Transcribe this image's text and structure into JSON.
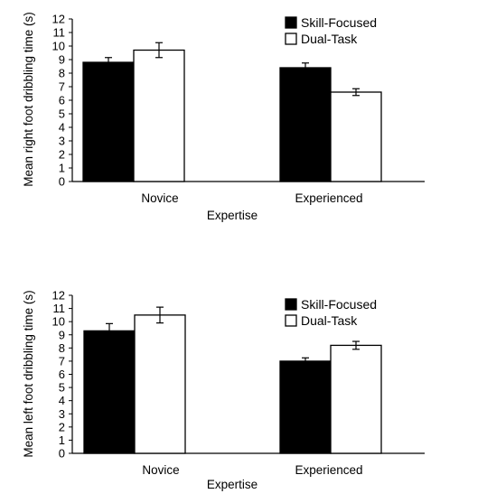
{
  "chart_data": [
    {
      "type": "bar",
      "categories": [
        "Novice",
        "Experienced"
      ],
      "series": [
        {
          "name": "Skill-Focused",
          "color": "#000000",
          "values": [
            8.8,
            8.4
          ],
          "errors": [
            0.35,
            0.35
          ]
        },
        {
          "name": "Dual-Task",
          "color": "#ffffff",
          "values": [
            9.7,
            6.6
          ],
          "errors": [
            0.55,
            0.25
          ]
        }
      ],
      "xlabel": "Expertise",
      "ylabel": "Mean right foot dribbling time (s)",
      "ylim": [
        0,
        12
      ],
      "yticks": [
        "0",
        "1",
        "2",
        "3",
        "4",
        "5",
        "6",
        "7",
        "8",
        "9",
        "10",
        "11",
        "12"
      ],
      "legend_position": "top-right",
      "grid": false
    },
    {
      "type": "bar",
      "categories": [
        "Novice",
        "Experienced"
      ],
      "series": [
        {
          "name": "Skill-Focused",
          "color": "#000000",
          "values": [
            9.3,
            7.0
          ],
          "errors": [
            0.55,
            0.25
          ]
        },
        {
          "name": "Dual-Task",
          "color": "#ffffff",
          "values": [
            10.5,
            8.2
          ],
          "errors": [
            0.6,
            0.3
          ]
        }
      ],
      "xlabel": "Expertise",
      "ylabel": "Mean left foot dribbling time (s)",
      "ylim": [
        0,
        12
      ],
      "yticks": [
        "0",
        "1",
        "2",
        "3",
        "4",
        "5",
        "6",
        "7",
        "8",
        "9",
        "10",
        "11",
        "12"
      ],
      "legend_position": "top-right",
      "grid": false
    }
  ]
}
